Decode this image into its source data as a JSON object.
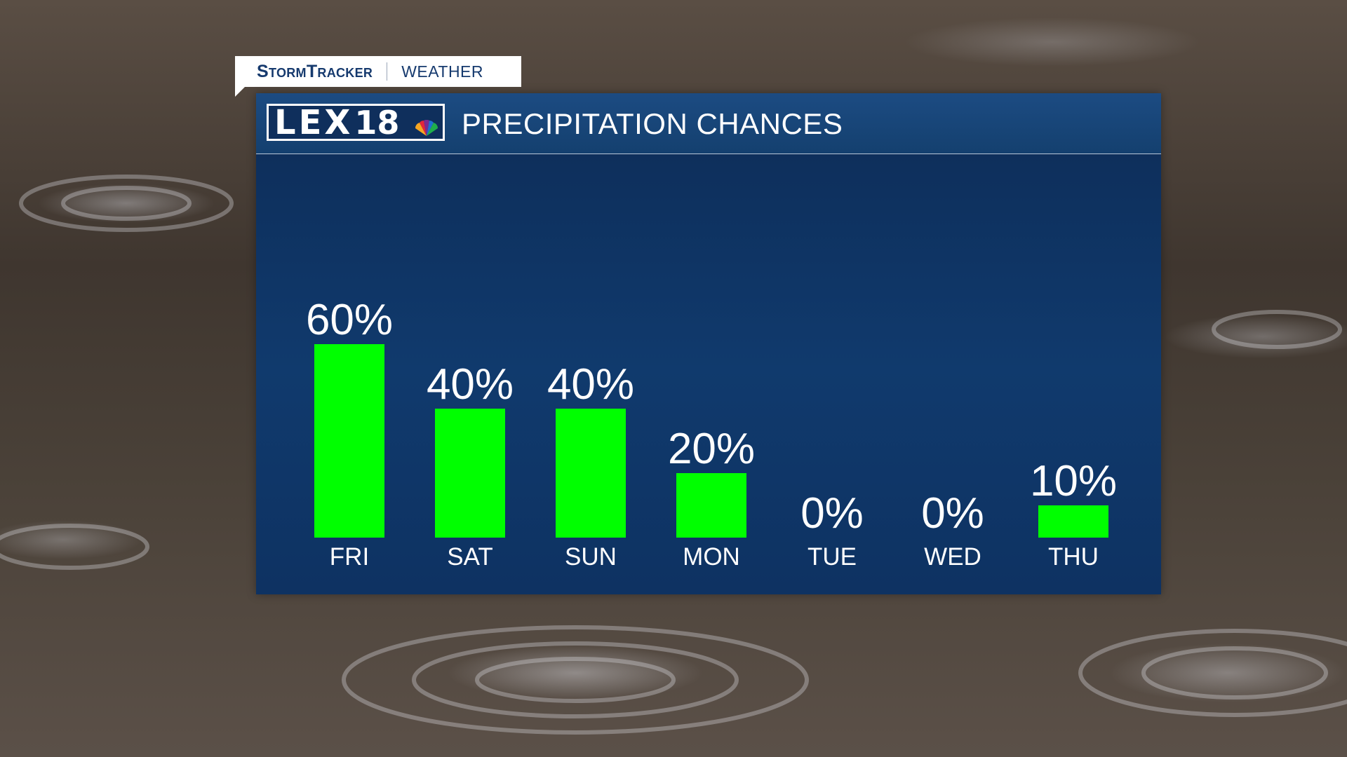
{
  "brand": {
    "stormtracker": "StormTracker",
    "weather": "WEATHER"
  },
  "logo": {
    "letters": "LEX",
    "number": "18"
  },
  "header": {
    "title": "PRECIPITATION CHANCES"
  },
  "colors": {
    "bar": "#00ff00",
    "panel": "#0f3566",
    "text": "#ffffff"
  },
  "chart_data": {
    "type": "bar",
    "title": "PRECIPITATION CHANCES",
    "categories": [
      "FRI",
      "SAT",
      "SUN",
      "MON",
      "TUE",
      "WED",
      "THU"
    ],
    "values": [
      60,
      40,
      40,
      20,
      0,
      0,
      10
    ],
    "data_labels": [
      "60%",
      "40%",
      "40%",
      "20%",
      "0%",
      "0%",
      "10%"
    ],
    "unit": "%",
    "ylim": [
      0,
      60
    ],
    "grid": false,
    "legend": "none"
  }
}
